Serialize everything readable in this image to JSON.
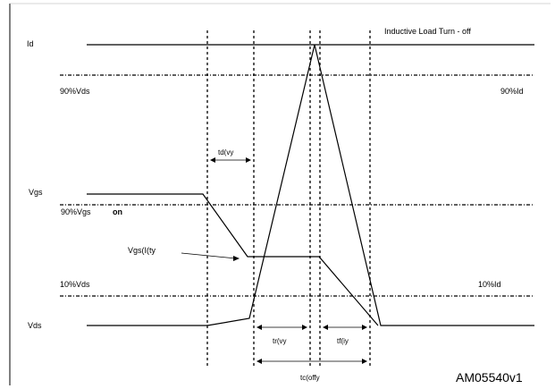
{
  "labels": {
    "id": "Id",
    "title": "Inductive Load Turn - off",
    "vds90": "90%Vds",
    "id90": "90%Id",
    "tdvy": "td(vy",
    "vgs": "Vgs",
    "vgs90": "90%Vgs",
    "on": "on",
    "vgsl": "Vgs(I(ty",
    "vds10": "10%Vds",
    "id10": "10%Id",
    "vds": "Vds",
    "trvy": "tr(vy",
    "tfiy": "tf(iy",
    "tcoffy": "tc(offy",
    "code": "AM05540v1"
  }
}
